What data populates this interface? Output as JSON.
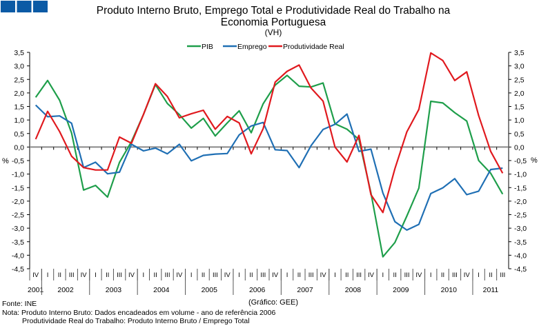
{
  "logo": {
    "color": "#0b5aa5",
    "blocks": 3
  },
  "chart_data": {
    "type": "line",
    "title_lines": [
      "Produto Interno Bruto, Emprego Total e Produtividade Real do Trabalho na",
      "Economia Portuguesa"
    ],
    "subtitle": "(VH)",
    "ylabel": "%",
    "ylim": [
      -4.5,
      3.5
    ],
    "yticks": [
      "3,5",
      "3,0",
      "2,5",
      "2,0",
      "1,5",
      "1,0",
      "0,5",
      "0,0",
      "-0,5",
      "-1,0",
      "-1,5",
      "-2,0",
      "-2,5",
      "-3,0",
      "-3,5",
      "-4,0",
      "-4,5"
    ],
    "legend_position": "top-center",
    "grid": false,
    "quarters": [
      "IV",
      "I",
      "II",
      "III",
      "IV",
      "I",
      "II",
      "III",
      "IV",
      "I",
      "II",
      "III",
      "IV",
      "I",
      "II",
      "III",
      "IV",
      "I",
      "II",
      "III",
      "IV",
      "I",
      "II",
      "III",
      "IV",
      "I",
      "II",
      "III",
      "IV",
      "I",
      "II",
      "III",
      "IV",
      "I",
      "II",
      "III",
      "IV",
      "I",
      "II",
      "III"
    ],
    "years": [
      {
        "label": "2001",
        "count": 1
      },
      {
        "label": "2002",
        "count": 4
      },
      {
        "label": "2003",
        "count": 4
      },
      {
        "label": "2004",
        "count": 4
      },
      {
        "label": "2005",
        "count": 4
      },
      {
        "label": "2006",
        "count": 4
      },
      {
        "label": "2007",
        "count": 4
      },
      {
        "label": "2008",
        "count": 4
      },
      {
        "label": "2009",
        "count": 4
      },
      {
        "label": "2010",
        "count": 4
      },
      {
        "label": "2011",
        "count": 3
      }
    ],
    "series": [
      {
        "name": "PIB",
        "color": "#1e9e4a",
        "values": [
          1.84,
          2.46,
          1.73,
          0.52,
          -1.59,
          -1.42,
          -1.85,
          -0.57,
          0.2,
          1.2,
          2.31,
          1.61,
          1.2,
          0.7,
          1.06,
          0.41,
          0.89,
          1.34,
          0.53,
          1.6,
          2.29,
          2.65,
          2.25,
          2.22,
          2.37,
          0.86,
          0.66,
          0.28,
          -1.7,
          -4.06,
          -3.53,
          -2.55,
          -1.52,
          1.69,
          1.63,
          1.27,
          0.96,
          -0.5,
          -0.97,
          -1.74
        ]
      },
      {
        "name": "Emprego",
        "color": "#1f6fb4",
        "values": [
          1.55,
          1.12,
          1.15,
          0.88,
          -0.76,
          -0.56,
          -0.99,
          -0.93,
          0.1,
          -0.14,
          -0.04,
          -0.25,
          0.1,
          -0.51,
          -0.31,
          -0.26,
          -0.24,
          0.45,
          0.78,
          0.91,
          -0.1,
          -0.13,
          -0.76,
          0.05,
          0.65,
          0.84,
          1.22,
          -0.16,
          -0.08,
          -1.7,
          -2.76,
          -3.07,
          -2.86,
          -1.72,
          -1.51,
          -1.17,
          -1.76,
          -1.63,
          -0.83,
          -0.78
        ]
      },
      {
        "name": "Produtividade Real",
        "color": "#e0191e",
        "values": [
          0.29,
          1.32,
          0.57,
          -0.34,
          -0.76,
          -0.85,
          -0.85,
          0.37,
          0.14,
          1.2,
          2.34,
          1.87,
          1.08,
          1.23,
          1.36,
          0.66,
          1.13,
          0.89,
          -0.25,
          0.68,
          2.4,
          2.8,
          3.03,
          2.18,
          1.7,
          0.0,
          -0.55,
          0.43,
          -1.76,
          -2.42,
          -0.8,
          0.56,
          1.39,
          3.48,
          3.2,
          2.46,
          2.78,
          1.16,
          -0.16,
          -0.97
        ]
      }
    ]
  },
  "footer": {
    "credit": "(Gráfico: GEE)",
    "source": "Fonte: INE",
    "note1": "Nota: Produto Interno Bruto: Dados encadeados em volume - ano de referência 2006",
    "note2": "Produtividade Real do Trabalho: Produto Interno Bruto / Emprego Total"
  }
}
